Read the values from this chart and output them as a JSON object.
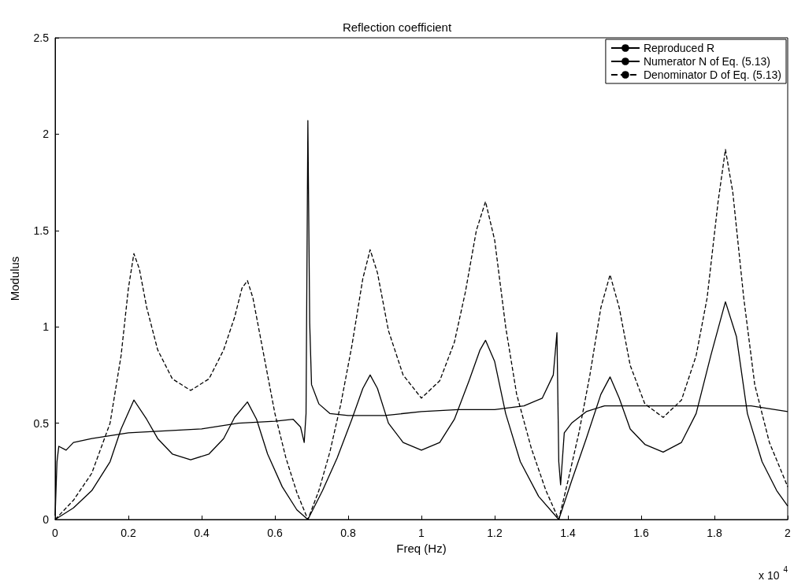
{
  "chart_data": {
    "type": "line",
    "title": "Reflection coefficient",
    "xlabel": "Freq (Hz)",
    "ylabel": "Modulus",
    "annotations": [
      "x 10$^{4}$"
    ],
    "xlim": [
      0,
      2
    ],
    "xticks": [
      0,
      0.2,
      0.4,
      0.6,
      0.8,
      1,
      1.2,
      1.4,
      1.6,
      1.8,
      2
    ],
    "ylim": [
      0,
      2.5
    ],
    "yticks": [
      0,
      0.5,
      1,
      1.5,
      2,
      2.5
    ],
    "grid": false,
    "legend": "top right",
    "marker": "none",
    "series": [
      {
        "name": "Reproduced R",
        "color": "#000000",
        "line_style": "solid",
        "x": [
          0,
          0.005,
          0.01,
          0.03,
          0.05,
          0.1,
          0.2,
          0.3,
          0.4,
          0.5,
          0.6,
          0.65,
          0.67,
          0.68,
          0.685,
          0.69,
          0.695,
          0.7,
          0.72,
          0.75,
          0.8,
          0.9,
          1.0,
          1.1,
          1.2,
          1.28,
          1.33,
          1.36,
          1.37,
          1.375,
          1.38,
          1.39,
          1.41,
          1.45,
          1.5,
          1.6,
          1.7,
          1.8,
          1.9,
          2.0
        ],
        "values": [
          0.02,
          0.3,
          0.38,
          0.36,
          0.4,
          0.42,
          0.45,
          0.46,
          0.47,
          0.5,
          0.51,
          0.52,
          0.48,
          0.4,
          0.55,
          2.07,
          1.02,
          0.7,
          0.6,
          0.55,
          0.54,
          0.54,
          0.56,
          0.57,
          0.57,
          0.59,
          0.63,
          0.75,
          0.97,
          0.3,
          0.18,
          0.45,
          0.5,
          0.56,
          0.59,
          0.59,
          0.59,
          0.59,
          0.59,
          0.56
        ]
      },
      {
        "name": "Numerator N of Eq. (5.13)",
        "color": "#000000",
        "line_style": "solid",
        "x": [
          0,
          0.05,
          0.1,
          0.15,
          0.18,
          0.215,
          0.25,
          0.28,
          0.32,
          0.37,
          0.42,
          0.46,
          0.49,
          0.525,
          0.55,
          0.58,
          0.62,
          0.66,
          0.69,
          0.73,
          0.77,
          0.81,
          0.84,
          0.86,
          0.88,
          0.91,
          0.95,
          1.0,
          1.05,
          1.09,
          1.13,
          1.16,
          1.175,
          1.2,
          1.23,
          1.27,
          1.32,
          1.375,
          1.41,
          1.45,
          1.49,
          1.515,
          1.54,
          1.57,
          1.61,
          1.66,
          1.71,
          1.75,
          1.79,
          1.83,
          1.86,
          1.89,
          1.93,
          1.97,
          2.0
        ],
        "values": [
          0,
          0.06,
          0.15,
          0.3,
          0.47,
          0.62,
          0.52,
          0.42,
          0.34,
          0.31,
          0.34,
          0.42,
          0.53,
          0.61,
          0.52,
          0.34,
          0.17,
          0.05,
          0,
          0.15,
          0.32,
          0.52,
          0.68,
          0.75,
          0.68,
          0.5,
          0.4,
          0.36,
          0.4,
          0.52,
          0.72,
          0.88,
          0.93,
          0.82,
          0.55,
          0.3,
          0.12,
          0,
          0.2,
          0.42,
          0.65,
          0.74,
          0.63,
          0.47,
          0.39,
          0.35,
          0.4,
          0.55,
          0.85,
          1.13,
          0.95,
          0.55,
          0.3,
          0.15,
          0.07
        ]
      },
      {
        "name": "Denominator D of Eq. (5.13)",
        "color": "#000000",
        "line_style": "dashed",
        "x": [
          0,
          0.05,
          0.1,
          0.15,
          0.18,
          0.2,
          0.215,
          0.23,
          0.25,
          0.28,
          0.32,
          0.37,
          0.42,
          0.46,
          0.49,
          0.51,
          0.525,
          0.54,
          0.57,
          0.6,
          0.63,
          0.66,
          0.69,
          0.72,
          0.75,
          0.78,
          0.81,
          0.84,
          0.86,
          0.88,
          0.91,
          0.95,
          1.0,
          1.05,
          1.09,
          1.12,
          1.15,
          1.175,
          1.2,
          1.23,
          1.26,
          1.3,
          1.34,
          1.375,
          1.4,
          1.43,
          1.46,
          1.49,
          1.515,
          1.54,
          1.57,
          1.61,
          1.66,
          1.71,
          1.75,
          1.78,
          1.81,
          1.83,
          1.85,
          1.88,
          1.91,
          1.95,
          2.0
        ],
        "values": [
          0,
          0.1,
          0.24,
          0.5,
          0.85,
          1.2,
          1.38,
          1.3,
          1.1,
          0.88,
          0.73,
          0.67,
          0.73,
          0.88,
          1.05,
          1.2,
          1.24,
          1.15,
          0.85,
          0.55,
          0.32,
          0.14,
          0,
          0.15,
          0.35,
          0.6,
          0.9,
          1.25,
          1.4,
          1.28,
          0.98,
          0.75,
          0.63,
          0.72,
          0.92,
          1.18,
          1.5,
          1.65,
          1.45,
          1.0,
          0.65,
          0.37,
          0.15,
          0,
          0.2,
          0.45,
          0.75,
          1.1,
          1.27,
          1.1,
          0.8,
          0.6,
          0.53,
          0.62,
          0.85,
          1.15,
          1.65,
          1.92,
          1.7,
          1.15,
          0.7,
          0.4,
          0.17
        ]
      }
    ]
  }
}
